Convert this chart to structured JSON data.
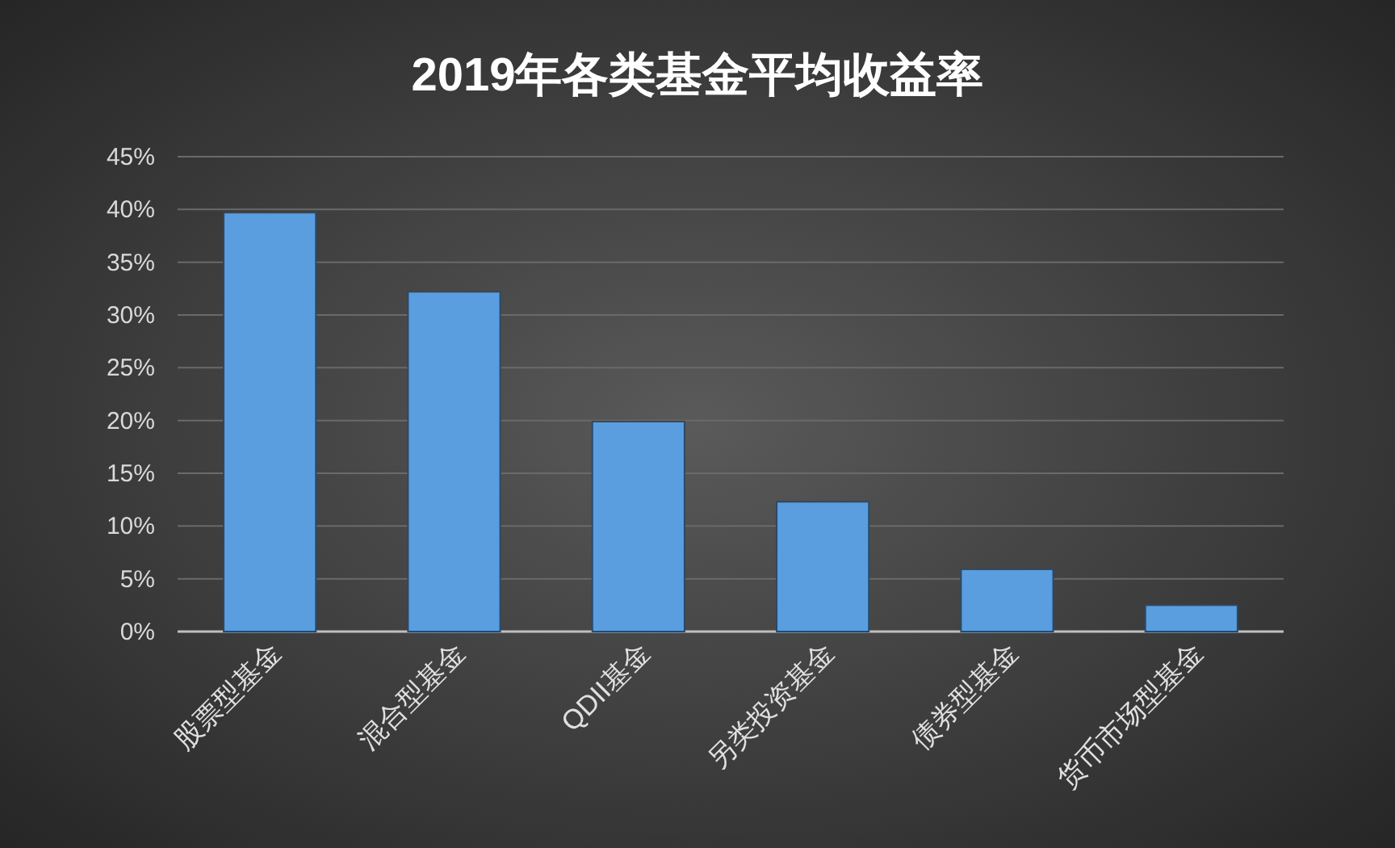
{
  "chart_data": {
    "type": "bar",
    "title": "2019年各类基金平均收益率",
    "categories": [
      "股票型基金",
      "混合型基金",
      "QDII基金",
      "另类投资基金",
      "债券型基金",
      "货币市场型基金"
    ],
    "values": [
      39.7,
      32.2,
      19.9,
      12.3,
      5.9,
      2.5
    ],
    "color": "#5a9ee0",
    "ylim": [
      0,
      45
    ],
    "yticks": [
      {
        "value": 0,
        "label": "0%"
      },
      {
        "value": 5,
        "label": "5%"
      },
      {
        "value": 10,
        "label": "10%"
      },
      {
        "value": 15,
        "label": "15%"
      },
      {
        "value": 20,
        "label": "20%"
      },
      {
        "value": 25,
        "label": "25%"
      },
      {
        "value": 30,
        "label": "30%"
      },
      {
        "value": 35,
        "label": "35%"
      },
      {
        "value": 40,
        "label": "40%"
      },
      {
        "value": 45,
        "label": "45%"
      }
    ],
    "grid": "y"
  }
}
